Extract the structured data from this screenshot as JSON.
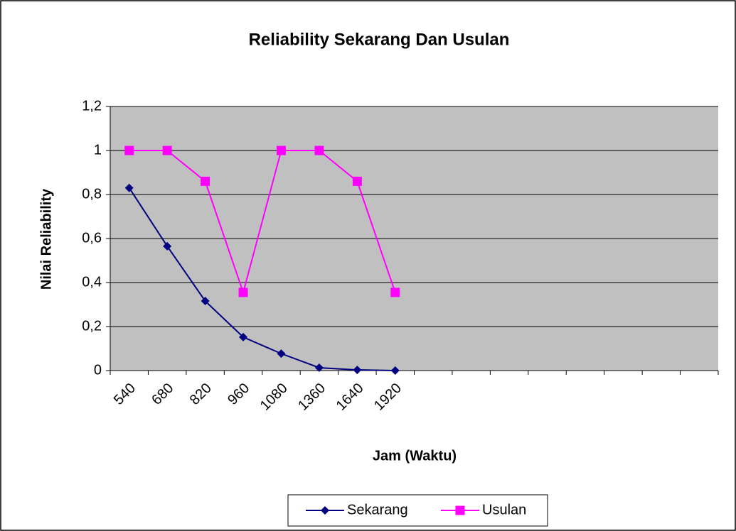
{
  "chart_data": {
    "type": "line",
    "title": "Reliability Sekarang Dan Usulan",
    "x_label": "Jam (Waktu)",
    "y_label": "Nilai Reliability",
    "categories": [
      "540",
      "680",
      "820",
      "960",
      "1080",
      "1360",
      "1640",
      "1920",
      null,
      null,
      null,
      null,
      null,
      null,
      null,
      null
    ],
    "series": [
      {
        "name": "Sekarang",
        "color": "#000080",
        "marker": "diamond",
        "values": [
          0.83,
          0.565,
          0.316,
          0.152,
          0.077,
          0.013,
          0.003,
          0.0,
          null,
          null,
          null,
          null,
          null,
          null,
          null,
          null
        ]
      },
      {
        "name": "Usulan",
        "color": "#ff00ff",
        "marker": "square",
        "values": [
          1,
          1,
          0.86,
          0.355,
          1,
          1,
          0.86,
          0.355,
          null,
          null,
          null,
          null,
          null,
          null,
          null,
          null
        ]
      }
    ],
    "ylim": [
      0,
      1.2
    ],
    "yticks": [
      0,
      {
        "value": 0.2,
        "label": "0,2"
      },
      {
        "value": 0.4,
        "label": "0,4"
      },
      {
        "value": 0.6,
        "label": "0,6"
      },
      {
        "value": 0.8,
        "label": "0,8"
      },
      1,
      {
        "value": 1.2,
        "label": "1,2"
      }
    ],
    "grid": true,
    "legend": "bottom"
  }
}
